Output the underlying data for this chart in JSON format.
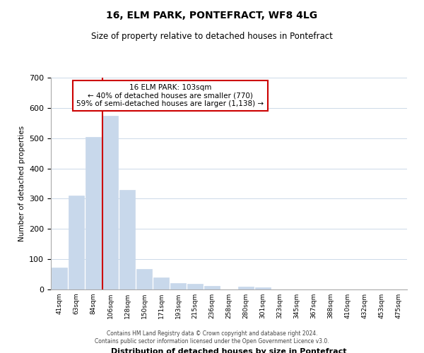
{
  "title": "16, ELM PARK, PONTEFRACT, WF8 4LG",
  "subtitle": "Size of property relative to detached houses in Pontefract",
  "xlabel": "Distribution of detached houses by size in Pontefract",
  "ylabel": "Number of detached properties",
  "bar_labels": [
    "41sqm",
    "63sqm",
    "84sqm",
    "106sqm",
    "128sqm",
    "150sqm",
    "171sqm",
    "193sqm",
    "215sqm",
    "236sqm",
    "258sqm",
    "280sqm",
    "301sqm",
    "323sqm",
    "345sqm",
    "367sqm",
    "388sqm",
    "410sqm",
    "432sqm",
    "453sqm",
    "475sqm"
  ],
  "bar_values": [
    73,
    311,
    505,
    573,
    328,
    68,
    40,
    20,
    18,
    12,
    0,
    10,
    6,
    0,
    0,
    0,
    0,
    0,
    0,
    0,
    0
  ],
  "bar_color": "#c8d8eb",
  "bar_edge_color": "#c8d8eb",
  "vline_color": "#cc0000",
  "ylim": [
    0,
    700
  ],
  "yticks": [
    0,
    100,
    200,
    300,
    400,
    500,
    600,
    700
  ],
  "annotation_text": "16 ELM PARK: 103sqm\n← 40% of detached houses are smaller (770)\n59% of semi-detached houses are larger (1,138) →",
  "annotation_box_color": "#ffffff",
  "annotation_box_edge": "#cc0000",
  "footer_line1": "Contains HM Land Registry data © Crown copyright and database right 2024.",
  "footer_line2": "Contains public sector information licensed under the Open Government Licence v3.0.",
  "bg_color": "#ffffff",
  "grid_color": "#ccd9e8"
}
